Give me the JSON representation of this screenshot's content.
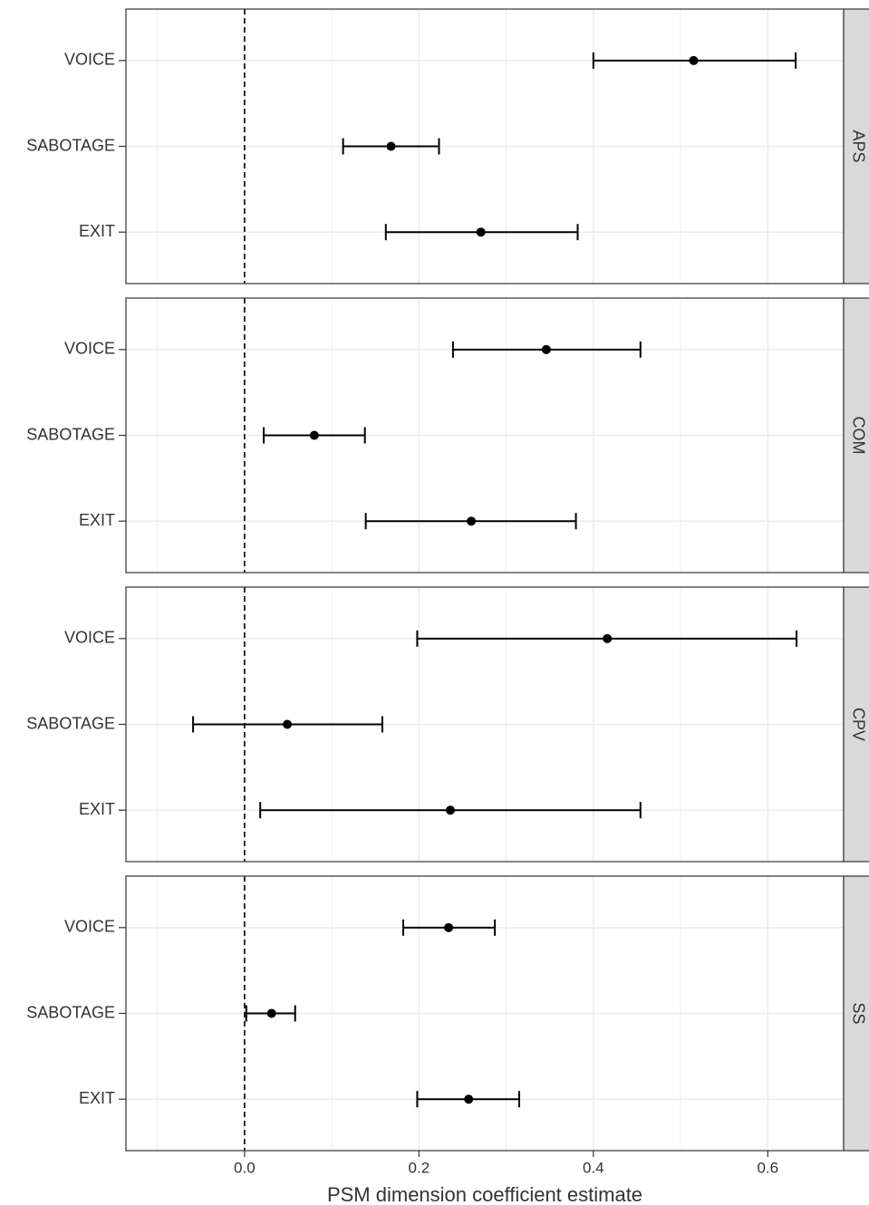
{
  "chart_data": [
    {
      "type": "forest",
      "strip": "APS",
      "categories": [
        "EXIT",
        "SABOTAGE",
        "VOICE"
      ],
      "values": [
        0.271,
        0.168,
        0.515
      ],
      "lower": [
        0.162,
        0.113,
        0.4
      ],
      "upper": [
        0.382,
        0.223,
        0.632
      ],
      "color": "#000000",
      "xlim": [
        -0.136,
        0.687
      ],
      "xticks": [
        {
          "value": 0,
          "label": "0.0"
        },
        0.2,
        0.4,
        0.6
      ],
      "xminorticks": [
        -0.1,
        0.1,
        0.3,
        0.5
      ],
      "refline": 0,
      "grid": true
    },
    {
      "type": "forest",
      "strip": "COM",
      "categories": [
        "EXIT",
        "SABOTAGE",
        "VOICE"
      ],
      "values": [
        0.26,
        0.08,
        0.346
      ],
      "lower": [
        0.139,
        0.022,
        0.239
      ],
      "upper": [
        0.38,
        0.138,
        0.454
      ],
      "color": "#000000",
      "xlim": [
        -0.136,
        0.687
      ],
      "xticks": [
        {
          "value": 0,
          "label": "0.0"
        },
        0.2,
        0.4,
        0.6
      ],
      "xminorticks": [
        -0.1,
        0.1,
        0.3,
        0.5
      ],
      "refline": 0,
      "grid": true
    },
    {
      "type": "forest",
      "strip": "CPV",
      "categories": [
        "EXIT",
        "SABOTAGE",
        "VOICE"
      ],
      "values": [
        0.236,
        0.049,
        0.416
      ],
      "lower": [
        0.018,
        -0.059,
        0.198
      ],
      "upper": [
        0.454,
        0.158,
        0.633
      ],
      "color": "#000000",
      "xlim": [
        -0.136,
        0.687
      ],
      "xticks": [
        {
          "value": 0,
          "label": "0.0"
        },
        0.2,
        0.4,
        0.6
      ],
      "xminorticks": [
        -0.1,
        0.1,
        0.3,
        0.5
      ],
      "refline": 0,
      "grid": true
    },
    {
      "type": "forest",
      "strip": "SS",
      "categories": [
        "EXIT",
        "SABOTAGE",
        "VOICE"
      ],
      "values": [
        0.257,
        0.031,
        0.234
      ],
      "lower": [
        0.198,
        0.002,
        0.182
      ],
      "upper": [
        0.315,
        0.058,
        0.287
      ],
      "color": "#000000",
      "xlim": [
        -0.136,
        0.687
      ],
      "xticks": [
        {
          "value": 0,
          "label": "0.0"
        },
        0.2,
        0.4,
        0.6
      ],
      "xminorticks": [
        -0.1,
        0.1,
        0.3,
        0.5
      ],
      "refline": 0,
      "grid": true,
      "xlabel": "PSM dimension coefficient estimate"
    }
  ]
}
